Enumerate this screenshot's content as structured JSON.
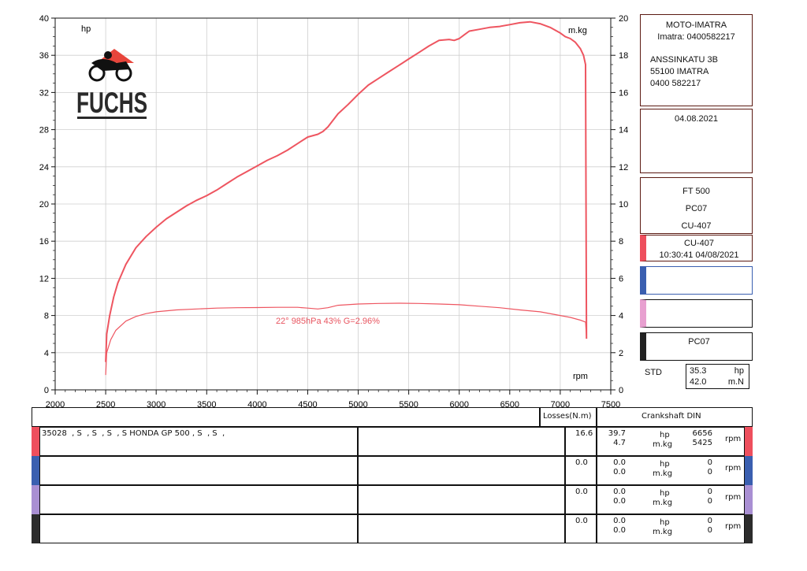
{
  "logo": {
    "text": "FUCHS",
    "icon": "motorcycle-rider-icon"
  },
  "chart_data": {
    "type": "line",
    "xlim": [
      2000,
      7500
    ],
    "x_ticks": [
      2000,
      2500,
      3000,
      3500,
      4000,
      4500,
      5000,
      5500,
      6000,
      6500,
      7000,
      7500
    ],
    "xlabel": "rpm",
    "left_axis": {
      "label": "hp",
      "ylim": [
        0,
        40
      ],
      "ticks": [
        0,
        4,
        8,
        12,
        16,
        20,
        24,
        28,
        32,
        36,
        40
      ]
    },
    "right_axis": {
      "label": "m.kg",
      "ylim": [
        0,
        20
      ],
      "ticks": [
        0,
        2,
        4,
        6,
        8,
        10,
        12,
        14,
        16,
        18,
        20
      ]
    },
    "grid": true,
    "annotation": "22°  985hPa  43%   G=2.96%",
    "series": [
      {
        "axis": "left",
        "color": "#ee5560",
        "x": [
          2500,
          2510,
          2540,
          2580,
          2620,
          2660,
          2700,
          2800,
          2900,
          3000,
          3100,
          3200,
          3300,
          3400,
          3500,
          3600,
          3700,
          3800,
          3900,
          4000,
          4100,
          4200,
          4300,
          4400,
          4500,
          4600,
          4650,
          4700,
          4800,
          4900,
          5000,
          5100,
          5200,
          5300,
          5400,
          5500,
          5600,
          5700,
          5800,
          5900,
          5950,
          6000,
          6050,
          6100,
          6200,
          6300,
          6400,
          6500,
          6600,
          6700,
          6800,
          6900,
          7000,
          7050,
          7100,
          7150,
          7200,
          7230,
          7250,
          7255,
          7260
        ],
        "y": [
          3,
          6,
          8,
          10,
          11.5,
          12.5,
          13.5,
          15.3,
          16.5,
          17.5,
          18.4,
          19.1,
          19.8,
          20.4,
          20.9,
          21.5,
          22.2,
          22.9,
          23.5,
          24.1,
          24.7,
          25.2,
          25.8,
          26.5,
          27.2,
          27.5,
          27.8,
          28.3,
          29.7,
          30.7,
          31.8,
          32.8,
          33.5,
          34.2,
          34.9,
          35.6,
          36.3,
          37.0,
          37.6,
          37.7,
          37.6,
          37.8,
          38.2,
          38.6,
          38.8,
          39.0,
          39.1,
          39.3,
          39.5,
          39.6,
          39.4,
          39.0,
          38.4,
          38.0,
          37.8,
          37.4,
          36.7,
          36.0,
          35.0,
          20,
          5.5
        ]
      },
      {
        "axis": "right",
        "color": "#ee5560",
        "x": [
          2500,
          2510,
          2550,
          2600,
          2700,
          2800,
          2900,
          3000,
          3200,
          3400,
          3600,
          3800,
          4000,
          4200,
          4400,
          4500,
          4600,
          4700,
          4800,
          5000,
          5200,
          5400,
          5600,
          5800,
          6000,
          6200,
          6400,
          6600,
          6800,
          7000,
          7100,
          7200,
          7250,
          7260
        ],
        "y": [
          0.8,
          2.0,
          2.7,
          3.2,
          3.7,
          3.95,
          4.1,
          4.2,
          4.3,
          4.35,
          4.4,
          4.42,
          4.43,
          4.44,
          4.44,
          4.4,
          4.35,
          4.42,
          4.55,
          4.62,
          4.65,
          4.66,
          4.65,
          4.62,
          4.58,
          4.5,
          4.42,
          4.3,
          4.2,
          4.0,
          3.9,
          3.75,
          3.65,
          2.8
        ]
      }
    ]
  },
  "info": {
    "shop_name": "MOTO-IMATRA",
    "shop_phone": "Imatra: 0400582217",
    "address": [
      "ANSSINKATU 3B",
      "55100 IMATRA",
      "0400 582217"
    ],
    "date": "04.08.2021",
    "vehicle": [
      "FT 500",
      "PC07",
      "CU-407"
    ],
    "run1": [
      "CU-407",
      "10:30:41  04/08/2021"
    ],
    "run4": "PC07",
    "std_label": "STD",
    "std_values": [
      {
        "value": "35.3",
        "unit": "hp"
      },
      {
        "value": "42.0",
        "unit": "m.N"
      }
    ]
  },
  "table": {
    "losses_header": "Losses(N.m)",
    "crankshaft_header": "Crankshaft DIN",
    "rows": [
      {
        "color": "#ee4f5d",
        "desc": "35028  , S  , S  , S  , S HONDA GP 500 , S  , S  ,",
        "losses": "16.6",
        "hp": "39.7",
        "hp_unit": "hp",
        "hp_rpm": "6656",
        "torque": "4.7",
        "torque_unit": "m.kg",
        "torque_rpm": "5425",
        "rpm_unit": "rpm"
      },
      {
        "color": "#3a5fb0",
        "desc": "",
        "losses": "0.0",
        "hp": "0.0",
        "hp_unit": "hp",
        "hp_rpm": "0",
        "torque": "0.0",
        "torque_unit": "m.kg",
        "torque_rpm": "0",
        "rpm_unit": "rpm"
      },
      {
        "color": "#a98fd3",
        "desc": "",
        "losses": "0.0",
        "hp": "0.0",
        "hp_unit": "hp",
        "hp_rpm": "0",
        "torque": "0.0",
        "torque_unit": "m.kg",
        "torque_rpm": "0",
        "rpm_unit": "rpm"
      },
      {
        "color": "#2c2c2c",
        "desc": "",
        "losses": "0.0",
        "hp": "0.0",
        "hp_unit": "hp",
        "hp_rpm": "0",
        "torque": "0.0",
        "torque_unit": "m.kg",
        "torque_rpm": "0",
        "rpm_unit": "rpm"
      }
    ]
  }
}
